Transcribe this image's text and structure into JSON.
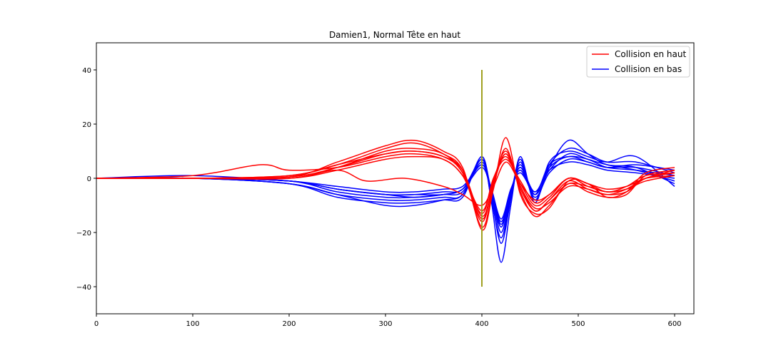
{
  "chart_data": {
    "type": "line",
    "title": "Damien1, Normal Tête en haut",
    "xlabel": "",
    "ylabel": "",
    "xlim": [
      0,
      620
    ],
    "ylim": [
      -50,
      50
    ],
    "xticks": [
      0,
      100,
      200,
      300,
      400,
      500,
      600
    ],
    "yticks": [
      -40,
      -20,
      0,
      20,
      40
    ],
    "grid": false,
    "legend_position": "top-right",
    "legend": [
      {
        "label": "Collision en haut",
        "color": "#ff0000"
      },
      {
        "label": "Collision en bas",
        "color": "#0000ff"
      }
    ],
    "marker_line": {
      "x": 400,
      "y_range": [
        -40,
        40
      ],
      "color": "#a0a020"
    },
    "series": [
      {
        "group": "Collision en haut",
        "color": "#ff0000",
        "x": [
          0,
          100,
          200,
          250,
          300,
          330,
          360,
          380,
          400,
          412,
          425,
          440,
          455,
          470,
          490,
          510,
          530,
          550,
          570,
          600
        ],
        "y": [
          0,
          0,
          0.5,
          4,
          9,
          10,
          8,
          2,
          -15,
          -2,
          9,
          -3,
          -12,
          -8,
          -1,
          -4,
          -6,
          -4,
          0,
          2
        ]
      },
      {
        "group": "Collision en haut",
        "color": "#ff0000",
        "x": [
          0,
          100,
          200,
          250,
          300,
          330,
          360,
          380,
          400,
          412,
          425,
          440,
          455,
          470,
          490,
          510,
          530,
          550,
          570,
          600
        ],
        "y": [
          0,
          0,
          1,
          5,
          11,
          13,
          9,
          3,
          -18,
          -3,
          11,
          -5,
          -14,
          -10,
          -2,
          -5,
          -7,
          -6,
          1,
          3
        ]
      },
      {
        "group": "Collision en haut",
        "color": "#ff0000",
        "x": [
          0,
          100,
          200,
          250,
          300,
          330,
          360,
          380,
          400,
          412,
          425,
          440,
          455,
          470,
          490,
          510,
          530,
          550,
          570,
          600
        ],
        "y": [
          0,
          0,
          0,
          3,
          7,
          8,
          7,
          1,
          -12,
          0,
          8,
          -2,
          -10,
          -7,
          0,
          -3,
          -5,
          -4,
          -1,
          1
        ]
      },
      {
        "group": "Collision en haut",
        "color": "#ff0000",
        "x": [
          0,
          100,
          200,
          250,
          300,
          330,
          360,
          380,
          400,
          412,
          425,
          440,
          455,
          470,
          490,
          510,
          530,
          550,
          570,
          600
        ],
        "y": [
          0,
          0,
          0.5,
          6,
          12,
          14,
          10,
          4,
          -19,
          -4,
          15,
          -6,
          -13,
          -11,
          -1,
          -2,
          -7,
          -5,
          2,
          4
        ]
      },
      {
        "group": "Collision en haut",
        "color": "#ff0000",
        "x": [
          0,
          100,
          200,
          250,
          300,
          330,
          360,
          380,
          400,
          412,
          425,
          440,
          455,
          470,
          490,
          510,
          530,
          550,
          570,
          600
        ],
        "y": [
          0,
          0,
          0,
          4,
          10,
          11,
          9,
          2,
          -16,
          -1,
          10,
          -3,
          -11,
          -9,
          -3,
          -4,
          -6,
          -5,
          0,
          2
        ]
      },
      {
        "group": "Collision en haut",
        "color": "#ff0000",
        "x": [
          0,
          100,
          200,
          250,
          300,
          330,
          360,
          380,
          400,
          412,
          425,
          440,
          455,
          470,
          490,
          510,
          530,
          550,
          570,
          600
        ],
        "y": [
          0,
          0,
          1,
          5,
          9,
          10,
          8,
          3,
          -14,
          -2,
          9,
          -4,
          -12,
          -8,
          -2,
          -3,
          -5,
          -4,
          0,
          3
        ]
      },
      {
        "group": "Collision en haut",
        "color": "#ff0000",
        "x": [
          0,
          100,
          170,
          200,
          250,
          300,
          330,
          360,
          380,
          400,
          412,
          425,
          440,
          455,
          470,
          490,
          510,
          530,
          550,
          570,
          600
        ],
        "y": [
          0,
          1,
          5,
          3,
          4,
          8,
          9,
          7,
          1,
          -13,
          0,
          7,
          -1,
          -9,
          -6,
          0,
          -2,
          -5,
          -3,
          1,
          2
        ]
      },
      {
        "group": "Collision en haut",
        "color": "#ff0000",
        "x": [
          0,
          100,
          200,
          250,
          280,
          320,
          360,
          380,
          400,
          412,
          425,
          440,
          455,
          470,
          490,
          510,
          530,
          550,
          570,
          600
        ],
        "y": [
          0,
          0,
          0,
          3,
          -1,
          0,
          -3,
          -6,
          -10,
          -3,
          6,
          -2,
          -8,
          -6,
          0,
          -2,
          -4,
          -3,
          0,
          1
        ]
      },
      {
        "group": "Collision en bas",
        "color": "#0000ff",
        "x": [
          0,
          100,
          200,
          250,
          300,
          330,
          360,
          380,
          400,
          410,
          420,
          430,
          440,
          455,
          470,
          490,
          510,
          530,
          560,
          600
        ],
        "y": [
          0,
          0,
          -1,
          -4,
          -6,
          -6,
          -5,
          -4,
          7,
          -5,
          -18,
          -5,
          3,
          -6,
          5,
          8,
          7,
          4,
          3,
          1
        ]
      },
      {
        "group": "Collision en bas",
        "color": "#0000ff",
        "x": [
          0,
          100,
          200,
          250,
          300,
          330,
          360,
          380,
          400,
          410,
          420,
          430,
          440,
          455,
          470,
          490,
          510,
          530,
          560,
          600
        ],
        "y": [
          0,
          0,
          -2,
          -6,
          -8,
          -8,
          -7,
          -6,
          8,
          -7,
          -24,
          -8,
          6,
          -8,
          4,
          14,
          9,
          5,
          4,
          -2
        ]
      },
      {
        "group": "Collision en bas",
        "color": "#0000ff",
        "x": [
          0,
          100,
          200,
          250,
          300,
          330,
          360,
          380,
          400,
          410,
          420,
          430,
          440,
          455,
          470,
          490,
          510,
          530,
          560,
          600
        ],
        "y": [
          0,
          1,
          -1,
          -3,
          -5,
          -5,
          -4,
          -3,
          5,
          -4,
          -15,
          -4,
          2,
          -5,
          3,
          6,
          5,
          3,
          2,
          0
        ]
      },
      {
        "group": "Collision en bas",
        "color": "#0000ff",
        "x": [
          0,
          100,
          200,
          250,
          300,
          330,
          360,
          380,
          400,
          410,
          420,
          430,
          440,
          455,
          470,
          490,
          510,
          530,
          560,
          600
        ],
        "y": [
          0,
          0,
          -2,
          -7,
          -9,
          -9,
          -8,
          -7,
          8,
          -9,
          -31,
          -10,
          8,
          -9,
          6,
          10,
          8,
          6,
          8,
          -3
        ]
      },
      {
        "group": "Collision en bas",
        "color": "#0000ff",
        "x": [
          0,
          100,
          200,
          250,
          300,
          330,
          360,
          380,
          400,
          410,
          420,
          430,
          440,
          455,
          470,
          490,
          510,
          530,
          560,
          600
        ],
        "y": [
          0,
          0,
          -1,
          -5,
          -7,
          -7,
          -6,
          -5,
          6,
          -6,
          -20,
          -6,
          4,
          -7,
          2,
          7,
          6,
          4,
          5,
          3
        ]
      },
      {
        "group": "Collision en bas",
        "color": "#0000ff",
        "x": [
          0,
          100,
          200,
          250,
          300,
          330,
          360,
          380,
          400,
          410,
          420,
          430,
          440,
          455,
          470,
          490,
          510,
          530,
          560,
          600
        ],
        "y": [
          0,
          0,
          -1,
          -4,
          -6,
          -6,
          -6,
          -4,
          4,
          -5,
          -16,
          -5,
          5,
          -6,
          3,
          9,
          7,
          5,
          3,
          -1
        ]
      },
      {
        "group": "Collision en bas",
        "color": "#0000ff",
        "x": [
          0,
          100,
          200,
          250,
          300,
          330,
          360,
          380,
          400,
          410,
          420,
          430,
          440,
          455,
          470,
          490,
          510,
          530,
          560,
          600
        ],
        "y": [
          0,
          0,
          -2,
          -6,
          -10,
          -10,
          -8,
          -6,
          7,
          -8,
          -22,
          -7,
          7,
          -8,
          5,
          11,
          9,
          6,
          6,
          2
        ]
      },
      {
        "group": "Collision en bas",
        "color": "#0000ff",
        "x": [
          0,
          100,
          200,
          250,
          300,
          330,
          360,
          380,
          400,
          410,
          420,
          430,
          440,
          455,
          470,
          490,
          510,
          530,
          560,
          600
        ],
        "y": [
          0,
          0,
          -1,
          -4,
          -6,
          -7,
          -6,
          -4,
          5,
          -5,
          -17,
          -5,
          4,
          -5,
          4,
          8,
          6,
          4,
          4,
          1
        ]
      }
    ]
  }
}
